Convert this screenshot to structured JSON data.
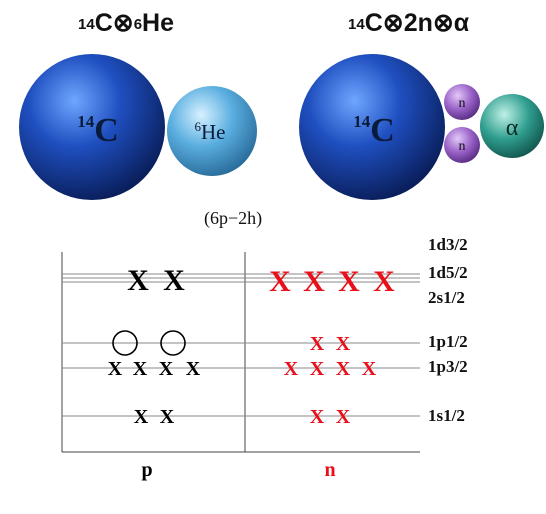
{
  "clusters": {
    "left": {
      "title_pre": "14",
      "title_main": "C⊗",
      "title_pre2": "6",
      "title_post": "He",
      "big": {
        "label_pre": "14",
        "label": "C",
        "color": "#1f4fc0"
      },
      "small": {
        "label_pre": "6",
        "label": "He",
        "color": "#5aaee0"
      }
    },
    "right": {
      "title_pre": "14",
      "title_main": "C⊗2n⊗α",
      "big": {
        "label_pre": "14",
        "label": "C",
        "color": "#1f4fc0"
      },
      "neutrons": [
        {
          "label": "n"
        },
        {
          "label": "n"
        }
      ],
      "neutron_color": "#9a63c8",
      "alpha": {
        "label": "α",
        "color": "#2f9e8f"
      }
    }
  },
  "configuration": "(6p−2h)",
  "shell_diagram": {
    "levels": [
      "1d3/2",
      "1d5/2",
      "2s1/2",
      "1p1/2",
      "1p3/2",
      "1s1/2"
    ],
    "columns": {
      "proton": "p",
      "neutron": "n"
    },
    "proton_color": "#000000",
    "neutron_color": "#e8111b",
    "occupancy": {
      "proton": {
        "sd_shell": 2,
        "1p1/2_holes": 2,
        "1p3/2": 4,
        "1s1/2": 2
      },
      "neutron": {
        "sd_shell": 4,
        "1p1/2": 2,
        "1p3/2": 4,
        "1s1/2": 2
      }
    },
    "marks": {
      "particle": "X",
      "hole": "O"
    }
  }
}
